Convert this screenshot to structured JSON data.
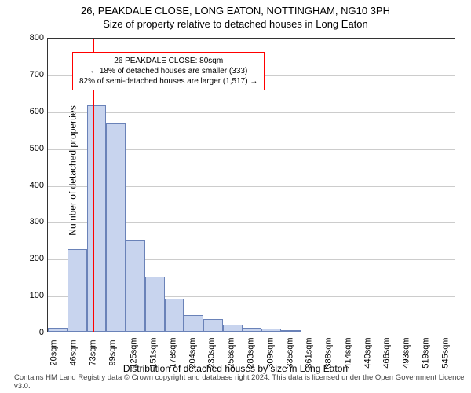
{
  "title_main": "26, PEAKDALE CLOSE, LONG EATON, NOTTINGHAM, NG10 3PH",
  "title_sub": "Size of property relative to detached houses in Long Eaton",
  "chart": {
    "type": "histogram",
    "title_fontsize": 13,
    "ylabel": "Number of detached properties",
    "xlabel": "Distribution of detached houses by size in Long Eaton",
    "label_fontsize": 12,
    "tick_fontsize": 11,
    "ylim": [
      0,
      800
    ],
    "ytick_step": 100,
    "yticks": [
      0,
      100,
      200,
      300,
      400,
      500,
      600,
      700,
      800
    ],
    "xticks": [
      "20sqm",
      "46sqm",
      "73sqm",
      "99sqm",
      "125sqm",
      "151sqm",
      "178sqm",
      "204sqm",
      "230sqm",
      "256sqm",
      "283sqm",
      "309sqm",
      "335sqm",
      "361sqm",
      "388sqm",
      "414sqm",
      "440sqm",
      "466sqm",
      "493sqm",
      "519sqm",
      "545sqm"
    ],
    "bar_values": [
      10,
      225,
      615,
      565,
      250,
      150,
      90,
      45,
      35,
      20,
      10,
      8,
      5,
      0,
      0,
      0,
      0,
      0,
      0,
      0,
      0
    ],
    "bar_color": "#c8d4ee",
    "bar_border_color": "#6a82b8",
    "bar_width_ratio": 1.0,
    "grid_color": "#cccccc",
    "background_color": "#ffffff",
    "border_color": "#333333",
    "marker_position_index": 2.3,
    "marker_color": "#ff0000",
    "marker_width": 2
  },
  "annotation": {
    "line1": "26 PEAKDALE CLOSE: 80sqm",
    "line2": "← 18% of detached houses are smaller (333)",
    "line3": "82% of semi-detached houses are larger (1,517) →",
    "border_color": "#ff0000",
    "background_color": "#ffffff",
    "fontsize": 10
  },
  "footer": "Contains HM Land Registry data © Crown copyright and database right 2024. This data is licensed under the Open Government Licence v3.0."
}
